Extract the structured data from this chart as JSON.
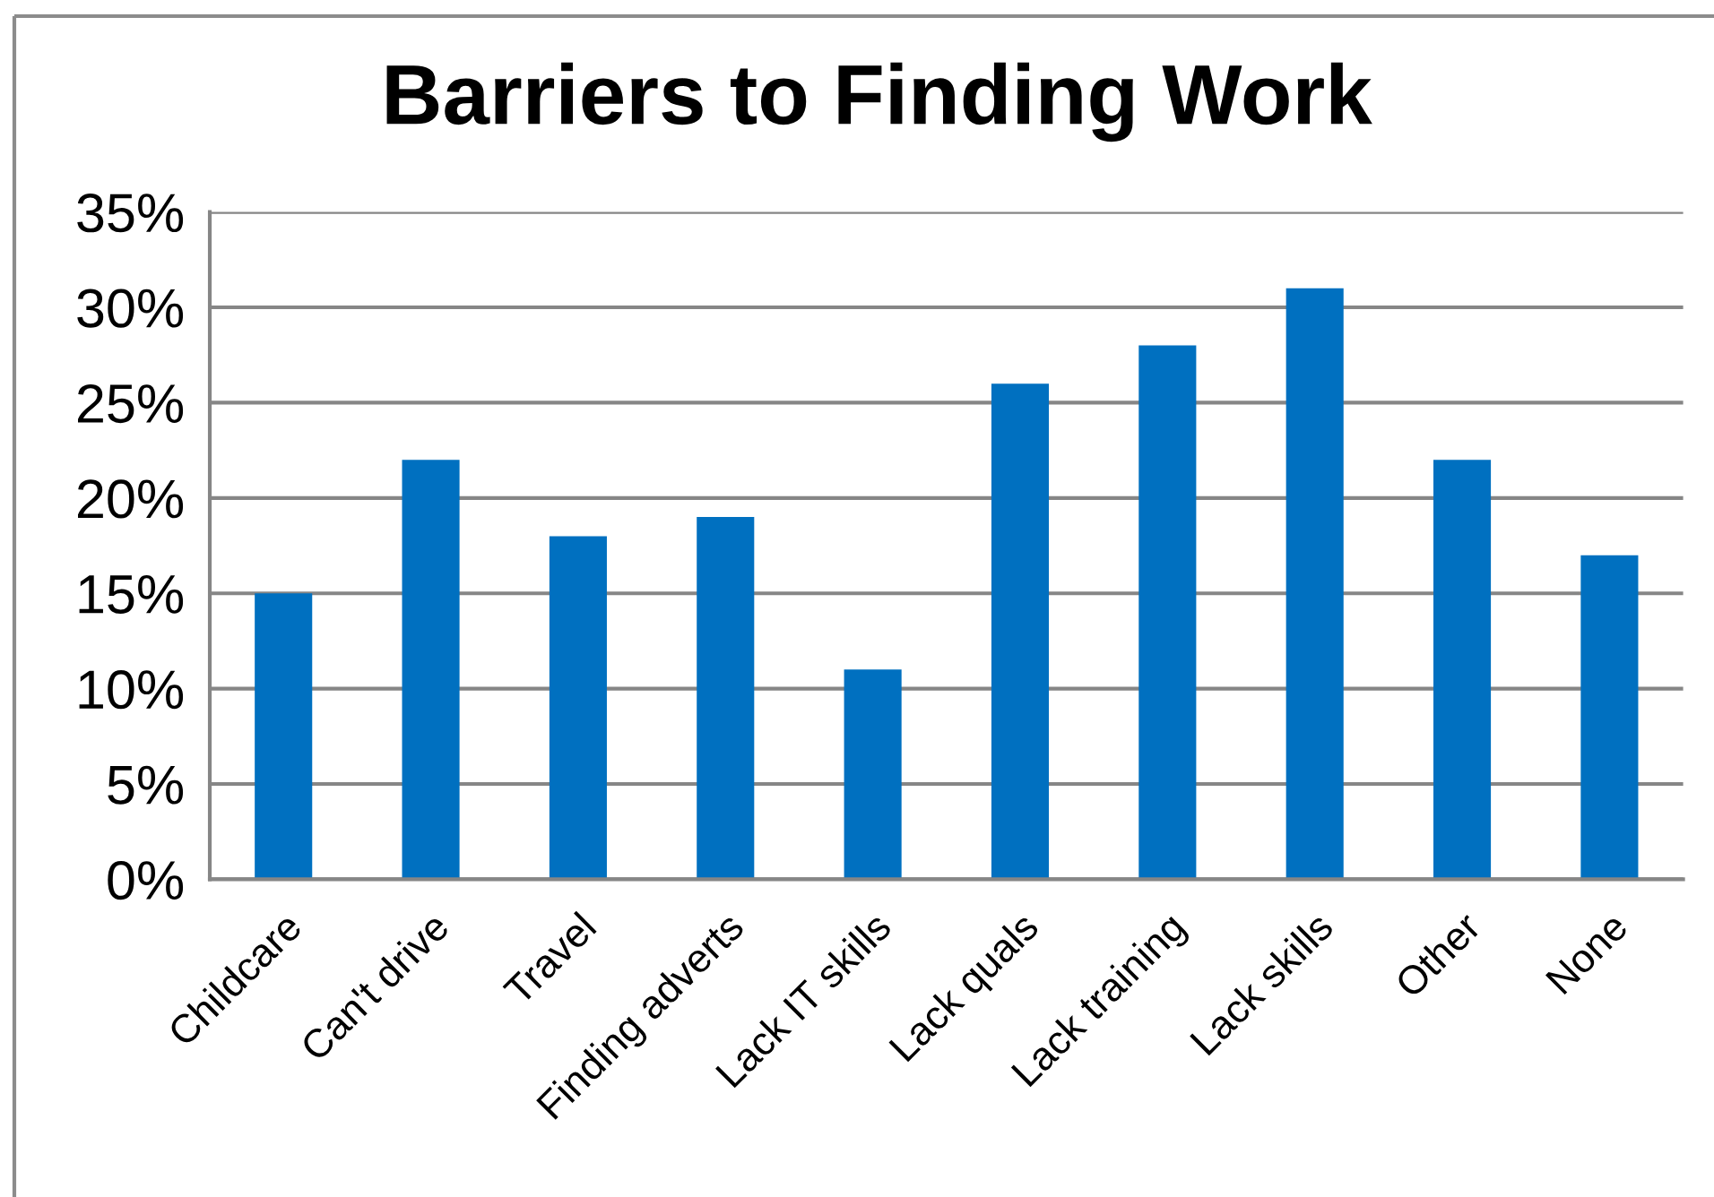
{
  "chart_data": {
    "type": "bar",
    "title": "Barriers to Finding Work",
    "categories": [
      "Childcare",
      "Can't drive",
      "Travel",
      "Finding adverts",
      "Lack IT skills",
      "Lack quals",
      "Lack training",
      "Lack skills",
      "Other",
      "None"
    ],
    "values": [
      15,
      22,
      18,
      19,
      11,
      26,
      28,
      31,
      22,
      17
    ],
    "color": "#0070c0",
    "ylim": [
      0,
      35
    ],
    "yticks": [
      {
        "value": 0,
        "label": "0%"
      },
      {
        "value": 5,
        "label": "5%"
      },
      {
        "value": 10,
        "label": "10%"
      },
      {
        "value": 15,
        "label": "15%"
      },
      {
        "value": 20,
        "label": "20%"
      },
      {
        "value": 25,
        "label": "25%"
      },
      {
        "value": 30,
        "label": "30%"
      },
      {
        "value": 35,
        "label": "35%"
      }
    ],
    "grid": "y"
  }
}
